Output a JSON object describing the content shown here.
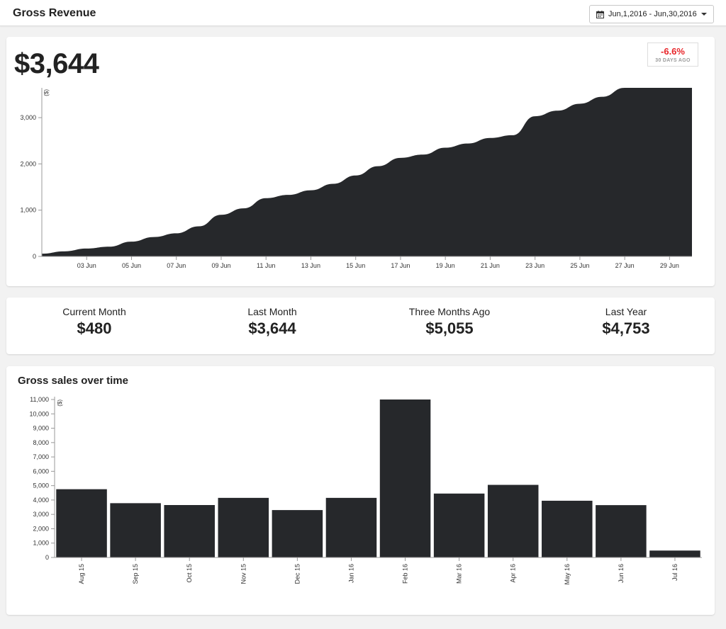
{
  "header": {
    "title": "Gross Revenue",
    "date_range": "Jun,1,2016 - Jun,30,2016"
  },
  "summary": {
    "value": "$3,644",
    "change": "-6.6%",
    "change_label": "30 DAYS AGO",
    "change_color": "#e8262a"
  },
  "stats": [
    {
      "label": "Current Month",
      "value": "$480"
    },
    {
      "label": "Last Month",
      "value": "$3,644"
    },
    {
      "label": "Three Months Ago",
      "value": "$5,055"
    },
    {
      "label": "Last Year",
      "value": "$4,753"
    }
  ],
  "sales_card": {
    "title": "Gross sales over time"
  },
  "colors": {
    "chart_fill": "#26282b",
    "axis": "#999999"
  },
  "chart_data": [
    {
      "type": "area",
      "ylabel": "($)",
      "ylim": [
        0,
        3644
      ],
      "yticks": [
        0,
        1000,
        2000,
        3000
      ],
      "ytick_labels": [
        "0",
        "1,000",
        "2,000",
        "3,000"
      ],
      "xlim": [
        1,
        30
      ],
      "xticks": [
        3,
        5,
        7,
        9,
        11,
        13,
        15,
        17,
        19,
        21,
        23,
        25,
        27,
        29
      ],
      "xtick_labels": [
        "03 Jun",
        "05 Jun",
        "07 Jun",
        "09 Jun",
        "11 Jun",
        "13 Jun",
        "15 Jun",
        "17 Jun",
        "19 Jun",
        "21 Jun",
        "23 Jun",
        "25 Jun",
        "27 Jun",
        "29 Jun"
      ],
      "x": [
        1,
        2,
        3,
        4,
        5,
        6,
        7,
        8,
        9,
        10,
        11,
        12,
        13,
        14,
        15,
        16,
        17,
        18,
        19,
        20,
        21,
        22,
        23,
        24,
        25,
        26,
        27,
        28,
        29,
        30
      ],
      "values": [
        60,
        110,
        170,
        210,
        320,
        420,
        500,
        650,
        900,
        1040,
        1260,
        1330,
        1430,
        1570,
        1750,
        1950,
        2130,
        2200,
        2350,
        2440,
        2560,
        2620,
        3030,
        3150,
        3300,
        3450,
        3644,
        3644,
        3644,
        3644
      ]
    },
    {
      "type": "bar",
      "ylabel": "($)",
      "ylim": [
        0,
        11000
      ],
      "yticks": [
        0,
        1000,
        2000,
        3000,
        4000,
        5000,
        6000,
        7000,
        8000,
        9000,
        10000,
        11000
      ],
      "ytick_labels": [
        "0",
        "1,000",
        "2,000",
        "3,000",
        "4,000",
        "5,000",
        "6,000",
        "7,000",
        "8,000",
        "9,000",
        "10,000",
        "11,000"
      ],
      "categories": [
        "Aug 15",
        "Sep 15",
        "Oct 15",
        "Nov 15",
        "Dec 15",
        "Jan 16",
        "Feb 16",
        "Mar 16",
        "Apr 16",
        "May 16",
        "Jun 16",
        "Jul 16"
      ],
      "values": [
        4753,
        3780,
        3650,
        4150,
        3300,
        4150,
        11000,
        4450,
        5055,
        3950,
        3644,
        480
      ]
    }
  ]
}
